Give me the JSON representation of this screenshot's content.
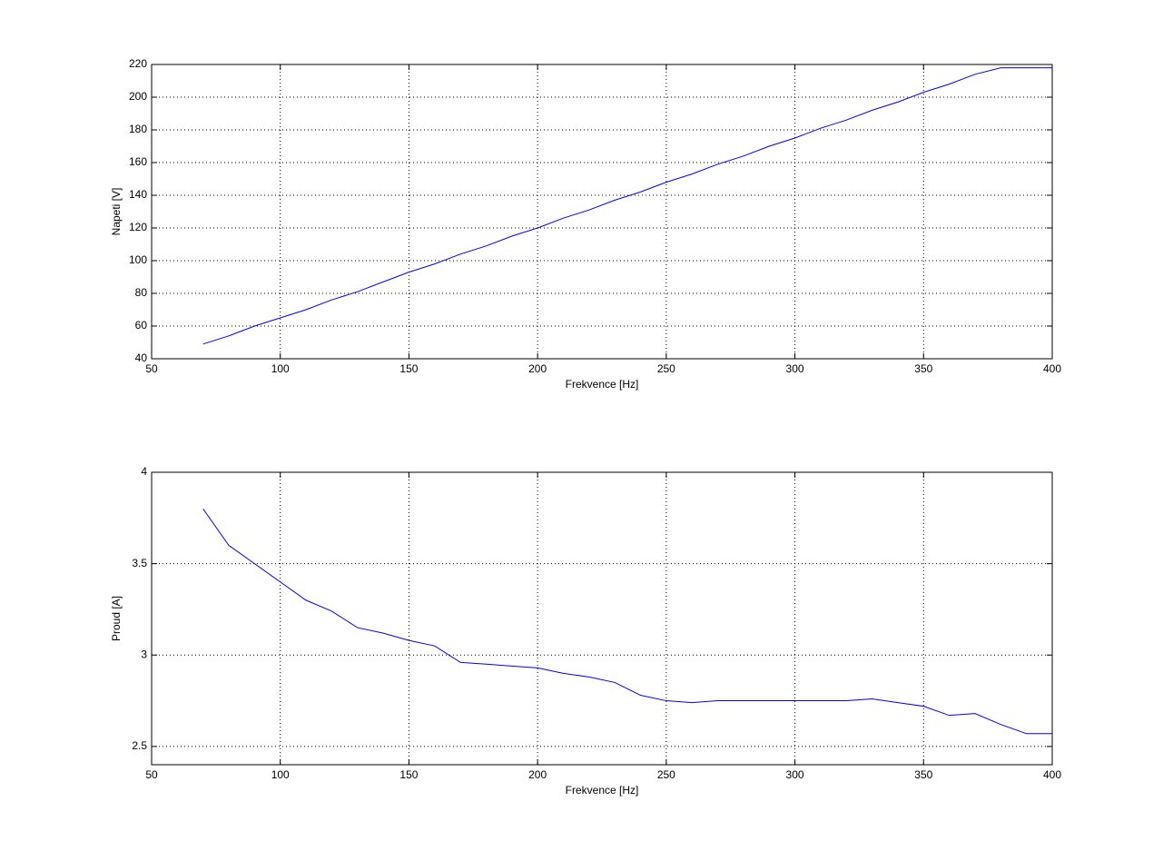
{
  "chart_data": [
    {
      "type": "line",
      "xlabel": "Frekvence [Hz]",
      "ylabel": "Napeti [V]",
      "x": [
        70,
        80,
        90,
        100,
        110,
        120,
        130,
        140,
        150,
        160,
        170,
        180,
        190,
        200,
        210,
        220,
        230,
        240,
        250,
        260,
        270,
        280,
        290,
        300,
        310,
        320,
        330,
        340,
        350,
        360,
        370,
        380,
        390,
        400
      ],
      "values": [
        49,
        54,
        60,
        65,
        70,
        76,
        81,
        87,
        93,
        98,
        104,
        109,
        115,
        120,
        126,
        131,
        137,
        142,
        148,
        153,
        159,
        164,
        170,
        175,
        181,
        186,
        192,
        197,
        203,
        208,
        214,
        218,
        218,
        218
      ],
      "color": "#0000ff",
      "xlim": [
        50,
        400
      ],
      "xticks": [
        50,
        100,
        150,
        200,
        250,
        300,
        350,
        400
      ],
      "ylim": [
        40,
        220
      ],
      "yticks": [
        40,
        60,
        80,
        100,
        120,
        140,
        160,
        180,
        200,
        220
      ],
      "grid": true
    },
    {
      "type": "line",
      "xlabel": "Frekvence [Hz]",
      "ylabel": "Proud [A]",
      "x": [
        70,
        80,
        90,
        100,
        110,
        120,
        130,
        140,
        150,
        160,
        170,
        180,
        190,
        200,
        210,
        220,
        230,
        240,
        250,
        260,
        270,
        280,
        290,
        300,
        310,
        320,
        330,
        340,
        350,
        360,
        370,
        380,
        390,
        400
      ],
      "values": [
        3.8,
        3.6,
        3.5,
        3.4,
        3.3,
        3.24,
        3.15,
        3.12,
        3.08,
        3.05,
        2.96,
        2.95,
        2.94,
        2.93,
        2.9,
        2.88,
        2.85,
        2.78,
        2.75,
        2.74,
        2.75,
        2.75,
        2.75,
        2.75,
        2.75,
        2.75,
        2.76,
        2.74,
        2.72,
        2.67,
        2.68,
        2.62,
        2.57,
        2.57
      ],
      "color": "#0000ff",
      "xlim": [
        50,
        400
      ],
      "xticks": [
        50,
        100,
        150,
        200,
        250,
        300,
        350,
        400
      ],
      "ylim": [
        2.4,
        4
      ],
      "yticks": [
        2.5,
        3,
        3.5,
        4
      ],
      "grid": true
    }
  ]
}
